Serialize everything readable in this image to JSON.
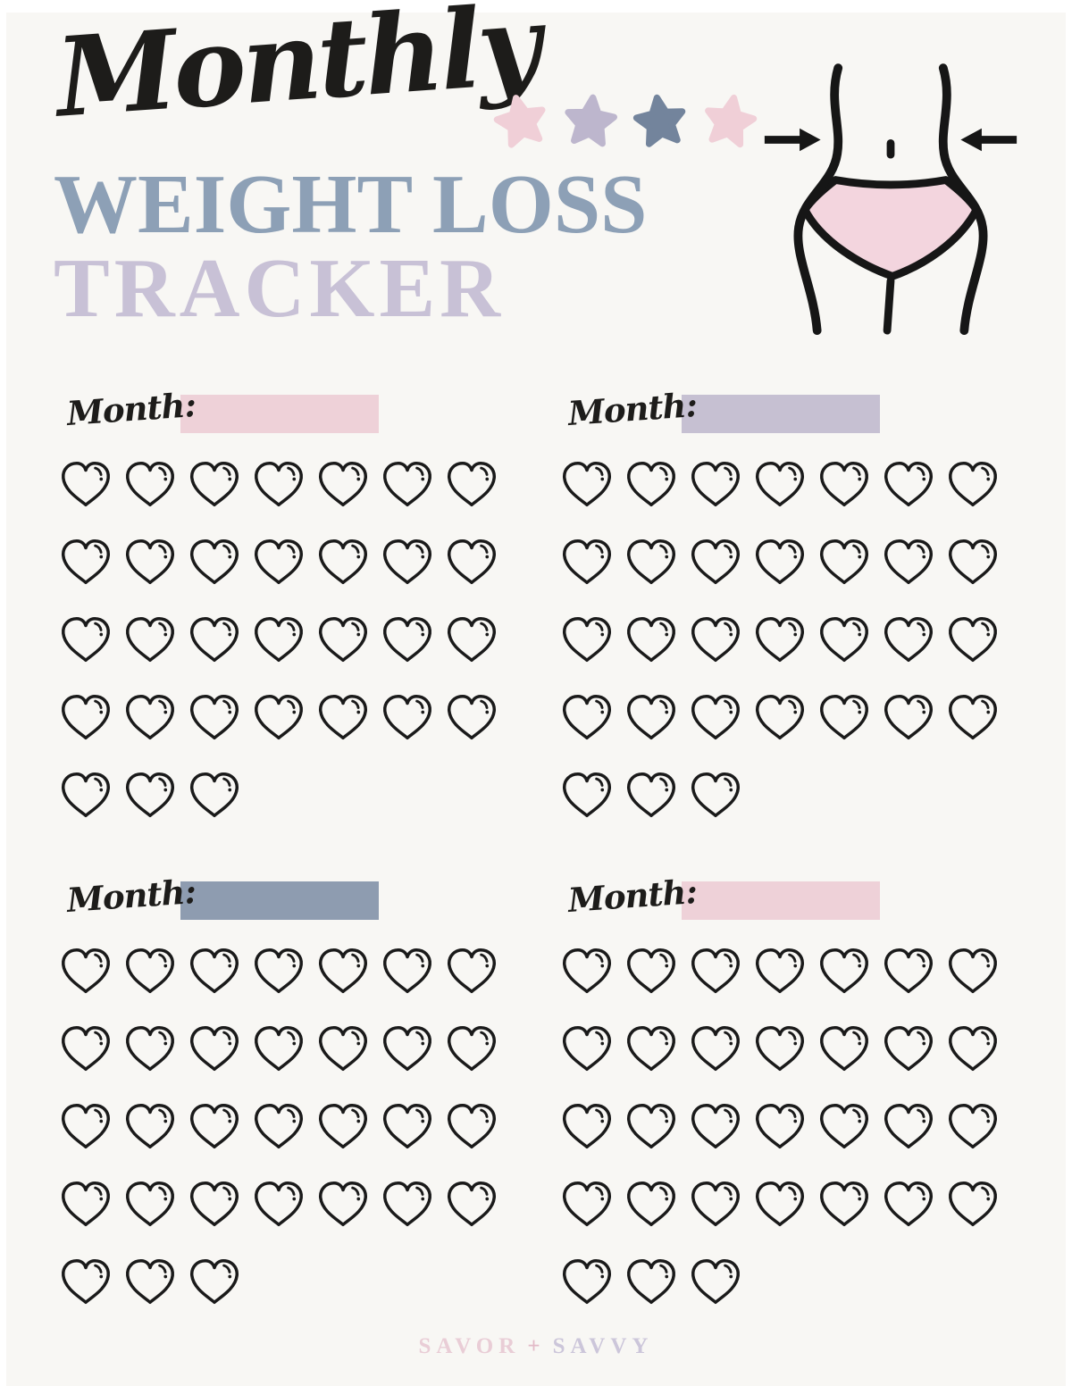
{
  "header": {
    "script_title": "Monthly",
    "title_line1": "WEIGHT LOSS",
    "title_line2": "TRACKER",
    "stars": [
      {
        "name": "star-icon",
        "color": "#f0cfd7"
      },
      {
        "name": "star-icon",
        "color": "#bdb6cd"
      },
      {
        "name": "star-icon",
        "color": "#73849c"
      },
      {
        "name": "star-icon",
        "color": "#f0cfd7"
      }
    ],
    "illustration": "waist-with-measuring-arrows"
  },
  "sections": [
    {
      "label": "Month:",
      "swatch_color": "#eed1d8",
      "heart_rows": [
        7,
        7,
        7,
        7,
        3
      ],
      "hearts_total": 31
    },
    {
      "label": "Month:",
      "swatch_color": "#c6c0d2",
      "heart_rows": [
        7,
        7,
        7,
        7,
        3
      ],
      "hearts_total": 31
    },
    {
      "label": "Month:",
      "swatch_color": "#8e9cb0",
      "heart_rows": [
        7,
        7,
        7,
        7,
        3
      ],
      "hearts_total": 31
    },
    {
      "label": "Month:",
      "swatch_color": "#eed1d8",
      "heart_rows": [
        7,
        7,
        7,
        7,
        3
      ],
      "hearts_total": 31
    }
  ],
  "footer": {
    "brand_left": "SAVOR",
    "brand_plus": "+",
    "brand_right": "SAVVY"
  },
  "colors": {
    "page_background": "#f8f7f4",
    "ink": "#1d1c1a",
    "title_line1": "#8da0b6",
    "title_line2": "#c8c1d6",
    "heart_outline": "#1a1a1a",
    "underwear_fill": "#f3d5de",
    "footer_left": "#e9cdd6",
    "footer_plus": "#e2bac7",
    "footer_right": "#ccc6da"
  }
}
